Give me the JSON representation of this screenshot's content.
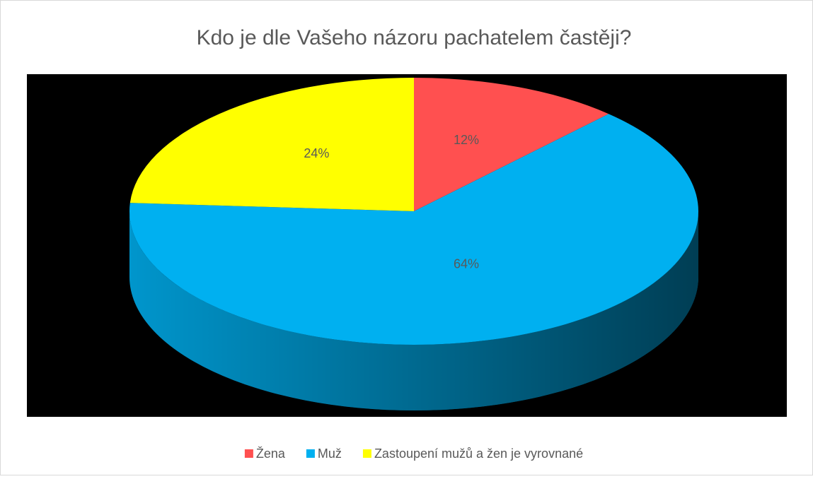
{
  "chart_data": {
    "type": "pie",
    "title": "Kdo je dle Vašeho názoru pachatelem častěji?",
    "categories": [
      "Žena",
      "Muž",
      "Zastoupení mužů a žen je vyrovnané"
    ],
    "values": [
      12,
      64,
      24
    ],
    "value_labels": [
      "12%",
      "64%",
      "24%"
    ],
    "colors": [
      "#ff5050",
      "#00b0f0",
      "#ffff00"
    ],
    "legend": "bottom"
  }
}
